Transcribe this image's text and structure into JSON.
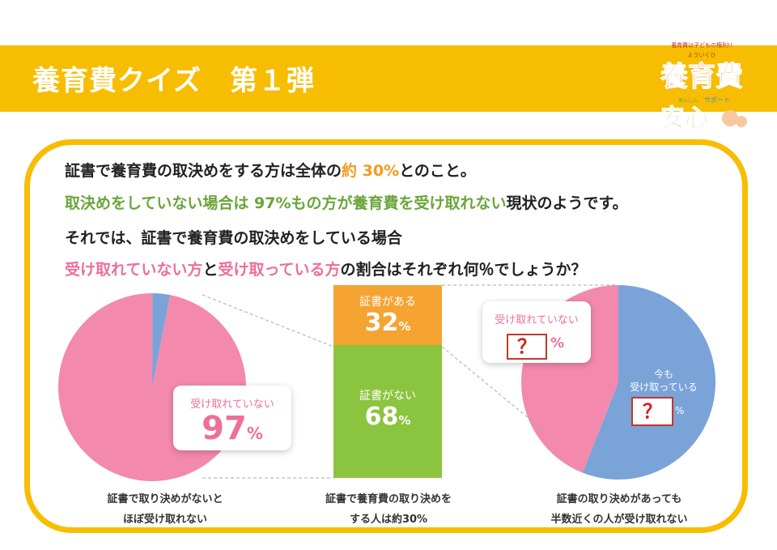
{
  "header": {
    "title": "養育費クイズ　第１弾",
    "logo_tagline": "養育費は子どもの権利!!",
    "logo_main": "養育費",
    "logo_sub": "安心",
    "logo_kana": "よういくひ",
    "logo_kana2": "あんしん",
    "logo_support": "サポート"
  },
  "intro": {
    "line1_a": "証書で養育費の取決めをする方は全体の",
    "line1_b": "約 30%",
    "line1_c": "とのこと。",
    "line2_a": "取決めをしていない場合は 97%もの方が養育費を受け取れない",
    "line2_b": "現状のようです。",
    "line3": "それでは、証書で養育費の取決めをしている場合",
    "line4_a": "受け取れていない方",
    "line4_b": "と",
    "line4_c": "受け取っている方",
    "line4_d": "の割合はそれぞれ何％でしょうか？"
  },
  "colors": {
    "pink": "#f389ac",
    "blue": "#7aa3d8",
    "orange": "#f5a331",
    "green": "#8bc43f",
    "yellow": "#f7bd00"
  },
  "chart_data": [
    {
      "type": "pie",
      "slices": [
        {
          "name": "受け取れていない",
          "value": 97,
          "color": "#f389ac"
        },
        {
          "name": "",
          "value": 3,
          "color": "#7aa3d8"
        }
      ],
      "label_text": "受け取れていない",
      "label_value": "97",
      "label_unit": "%",
      "caption_line1": "証書で取り決めがないと",
      "caption_line2": "ほぼ受け取れない"
    },
    {
      "type": "bar",
      "stacked": true,
      "categories": [
        "証書がある",
        "証書がない"
      ],
      "values": [
        32,
        68
      ],
      "unit": "%",
      "colors": [
        "#f5a331",
        "#8bc43f"
      ],
      "caption_line1": "証書で養育費の取り決めを",
      "caption_line2": "する人は約30%"
    },
    {
      "type": "pie",
      "slices": [
        {
          "name": "受け取れていない",
          "value": 44,
          "color": "#f389ac"
        },
        {
          "name": "今も受け取っている",
          "value": 56,
          "color": "#7aa3d8"
        }
      ],
      "pink_label": "受け取れていない",
      "blue_label_1": "今も",
      "blue_label_2": "受け取っている",
      "unknown_mark": "？",
      "unit": "%",
      "caption_line1": "証書の取り決めがあっても",
      "caption_line2": "半数近くの人が受け取れない"
    }
  ]
}
